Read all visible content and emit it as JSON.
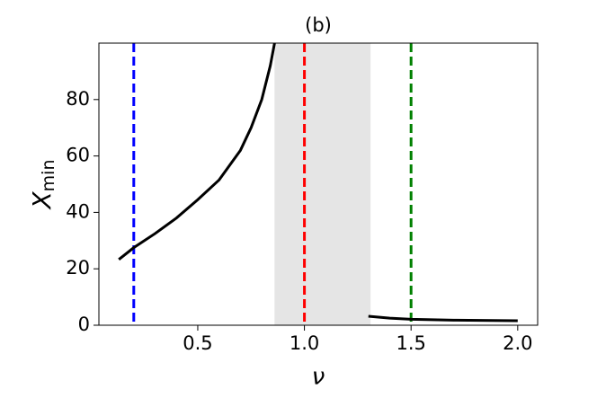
{
  "chart_data": {
    "type": "line",
    "title": "(b)",
    "xlabel": "ν",
    "ylabel": "X",
    "ylabel_subscript": "min",
    "x": [
      0.13,
      0.2,
      0.3,
      0.4,
      0.5,
      0.6,
      0.7,
      0.75,
      0.8,
      0.84,
      0.86,
      1.3,
      1.3,
      1.4,
      1.5,
      1.7,
      2.0
    ],
    "series": [
      {
        "color": "#000000",
        "values": [
          23.3,
          27.5,
          32.5,
          38,
          44.5,
          51.5,
          62,
          70,
          80,
          92,
          100,
          null,
          3.2,
          2.5,
          2.1,
          1.8,
          1.6
        ]
      }
    ],
    "span": {
      "x": [
        0.86,
        1.31
      ],
      "color": "#e5e5e5"
    },
    "vlines": [
      {
        "x": 0.2,
        "color": "#0000ff"
      },
      {
        "x": 1.0,
        "color": "#ff0000"
      },
      {
        "x": 1.5,
        "color": "#008000"
      }
    ],
    "xlim": [
      0.0365,
      2.0935
    ],
    "ylim": [
      0,
      100
    ],
    "xticks": [
      0.5,
      {
        "value": 1.0,
        "label": "1.0"
      },
      1.5,
      {
        "value": 2.0,
        "label": "2.0"
      }
    ],
    "yticks": [
      0,
      20,
      40,
      60,
      80
    ]
  }
}
